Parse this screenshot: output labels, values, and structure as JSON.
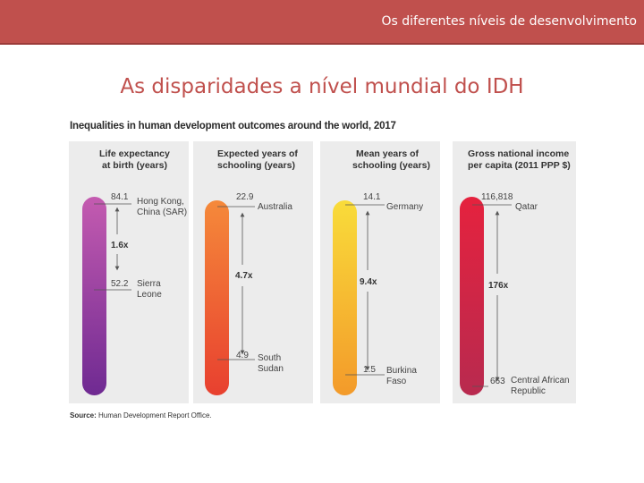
{
  "header": {
    "title": "Os diferentes níveis de desenvolvimento"
  },
  "slide": {
    "title": "As disparidades a nível mundial do IDH"
  },
  "figure": {
    "title": "Inequalities in human development outcomes around the world, 2017",
    "source_label": "Source:",
    "source_text": "Human Development Report Office."
  },
  "panels": [
    {
      "header": [
        "Life expectancy",
        "at birth (years)"
      ],
      "high_value": "84.1",
      "high_label": [
        "Hong Kong,",
        "China (SAR)"
      ],
      "low_value": "52.2",
      "low_label": [
        "Sierra",
        "Leone"
      ],
      "ratio": "1.6x",
      "gradient": [
        "#c45bb0",
        "#6f2a92"
      ]
    },
    {
      "header": [
        "Expected years of",
        "schooling (years)"
      ],
      "high_value": "22.9",
      "high_label": [
        "Australia"
      ],
      "low_value": "4.9",
      "low_label": [
        "South",
        "Sudan"
      ],
      "ratio": "4.7x",
      "gradient": [
        "#f5893a",
        "#e8402f"
      ]
    },
    {
      "header": [
        "Mean years of",
        "schooling (years)"
      ],
      "high_value": "14.1",
      "high_label": [
        "Germany"
      ],
      "low_value": "1.5",
      "low_label": [
        "Burkina",
        "Faso"
      ],
      "ratio": "9.4x",
      "gradient": [
        "#f9dc3a",
        "#f39a2a"
      ]
    },
    {
      "header": [
        "Gross national income",
        "per capita (2011 PPP $)"
      ],
      "high_value": "116,818",
      "high_label": [
        "Qatar"
      ],
      "low_value": "663",
      "low_label": [
        "Central African",
        "Republic"
      ],
      "ratio": "176x",
      "gradient": [
        "#e5223e",
        "#b82a4f"
      ]
    }
  ]
}
